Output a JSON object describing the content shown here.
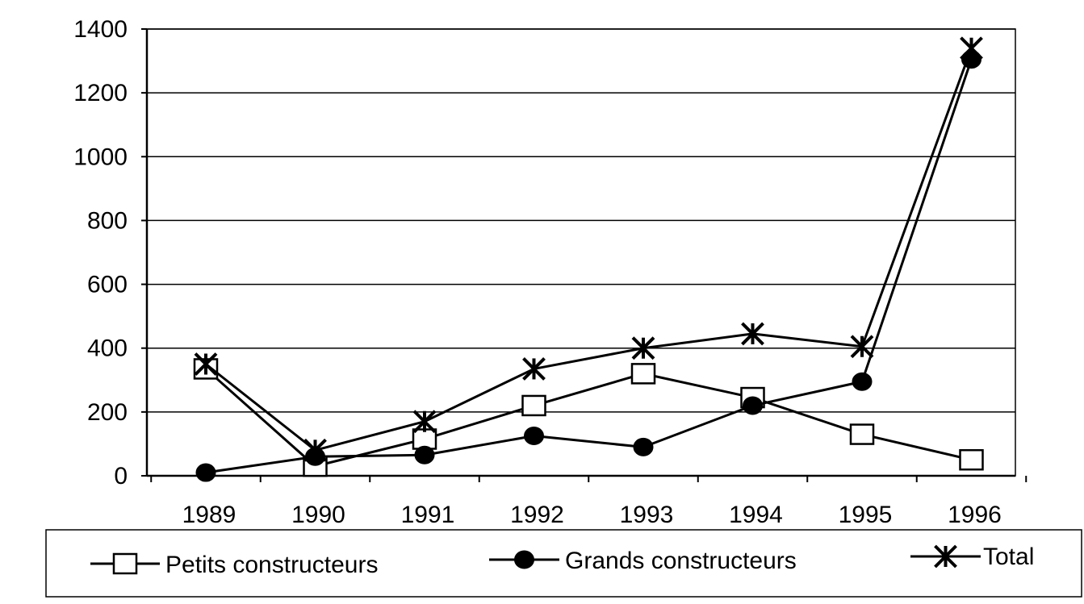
{
  "chart_data": {
    "type": "line",
    "categories": [
      "1989",
      "1990",
      "1991",
      "1992",
      "1993",
      "1994",
      "1995",
      "1996"
    ],
    "ylim": [
      0,
      1400
    ],
    "yticks": [
      0,
      200,
      400,
      600,
      800,
      1000,
      1200,
      1400
    ],
    "grid": true,
    "legend_position": "bottom",
    "series": [
      {
        "name": "Petits constructeurs",
        "marker": "square-open",
        "values": [
          335,
          30,
          115,
          220,
          320,
          245,
          130,
          50
        ]
      },
      {
        "name": "Grands constructeurs",
        "marker": "circle-filled",
        "values": [
          10,
          60,
          65,
          125,
          90,
          220,
          295,
          1305
        ]
      },
      {
        "name": "Total",
        "marker": "star",
        "values": [
          350,
          80,
          170,
          335,
          400,
          445,
          405,
          1340
        ]
      }
    ],
    "colors": {
      "line": "#000000",
      "grid": "#000000",
      "background": "#ffffff"
    }
  }
}
